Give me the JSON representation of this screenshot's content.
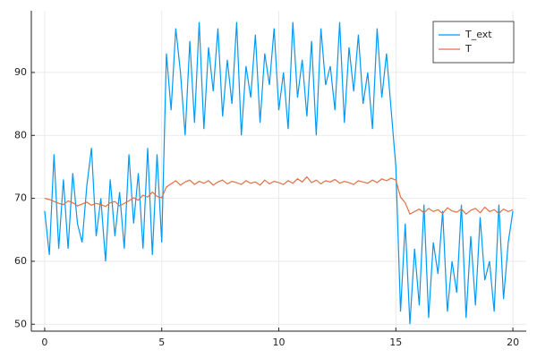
{
  "chart_data": {
    "type": "line",
    "x": [
      0,
      0.2,
      0.4,
      0.6,
      0.8,
      1,
      1.2,
      1.4,
      1.6,
      1.8,
      2,
      2.2,
      2.4,
      2.6,
      2.8,
      3,
      3.2,
      3.4,
      3.6,
      3.8,
      4,
      4.2,
      4.4,
      4.6,
      4.8,
      5,
      5.2,
      5.4,
      5.6,
      5.8,
      6,
      6.2,
      6.4,
      6.6,
      6.8,
      7,
      7.2,
      7.4,
      7.6,
      7.8,
      8,
      8.2,
      8.4,
      8.6,
      8.8,
      9,
      9.2,
      9.4,
      9.6,
      9.8,
      10,
      10.2,
      10.4,
      10.6,
      10.8,
      11,
      11.2,
      11.4,
      11.6,
      11.8,
      12,
      12.2,
      12.4,
      12.6,
      12.8,
      13,
      13.2,
      13.4,
      13.6,
      13.8,
      14,
      14.2,
      14.4,
      14.6,
      14.8,
      15,
      15.2,
      15.4,
      15.6,
      15.8,
      16,
      16.2,
      16.4,
      16.6,
      16.8,
      17,
      17.2,
      17.4,
      17.6,
      17.8,
      18,
      18.2,
      18.4,
      18.6,
      18.8,
      19,
      19.2,
      19.4,
      19.6,
      19.8,
      20
    ],
    "series": [
      {
        "name": "T_ext",
        "color": "#009af9",
        "values": [
          68,
          61,
          77,
          62,
          73,
          62,
          74,
          66,
          63,
          72,
          78,
          64,
          70,
          60,
          73,
          64,
          71,
          62,
          77,
          66,
          74,
          62,
          78,
          61,
          77,
          63,
          93,
          84,
          97,
          90,
          80,
          95,
          82,
          98,
          81,
          94,
          87,
          97,
          83,
          92,
          85,
          98,
          80,
          91,
          86,
          96,
          82,
          93,
          88,
          97,
          84,
          90,
          81,
          98,
          86,
          92,
          83,
          95,
          80,
          97,
          88,
          91,
          84,
          98,
          82,
          94,
          87,
          96,
          85,
          90,
          81,
          97,
          86,
          93,
          84,
          75,
          52,
          66,
          50,
          62,
          53,
          69,
          51,
          63,
          58,
          68,
          52,
          60,
          55,
          69,
          51,
          64,
          53,
          67,
          57,
          60,
          52,
          69,
          54,
          63,
          68
        ]
      },
      {
        "name": "T",
        "color": "#e26f46",
        "values": [
          70,
          69.8,
          69.5,
          69.2,
          69,
          69.6,
          69.3,
          68.8,
          69.1,
          69.4,
          68.9,
          69.2,
          69,
          68.7,
          69.3,
          69.5,
          68.8,
          69.2,
          69.6,
          70.1,
          69.7,
          70.5,
          70.2,
          71,
          70.3,
          70.1,
          71.8,
          72.3,
          72.8,
          72.1,
          72.6,
          72.9,
          72.2,
          72.7,
          72.4,
          72.8,
          72.1,
          72.6,
          72.9,
          72.3,
          72.7,
          72.5,
          72.2,
          72.8,
          72.4,
          72.6,
          72.1,
          72.9,
          72.3,
          72.7,
          72.5,
          72.2,
          72.8,
          72.4,
          73.1,
          72.6,
          73.4,
          72.5,
          72.9,
          72.3,
          72.8,
          72.6,
          73.0,
          72.4,
          72.7,
          72.5,
          72.2,
          72.8,
          72.6,
          72.4,
          72.9,
          72.5,
          73.1,
          72.8,
          73.2,
          72.9,
          70.2,
          69.3,
          67.5,
          67.9,
          68.3,
          67.7,
          68.4,
          67.9,
          68.2,
          67.6,
          68.5,
          68,
          67.8,
          68.3,
          67.5,
          68.1,
          68.4,
          67.7,
          68.6,
          67.9,
          68.2,
          67.6,
          68.3,
          67.9,
          68.2
        ]
      }
    ],
    "xlim": [
      -0.57,
      20.57
    ],
    "xticks": [
      0,
      5,
      10,
      15,
      20
    ],
    "ylim": [
      48.9,
      99.8
    ],
    "yticks": [
      50,
      60,
      70,
      80,
      90
    ],
    "grid": true,
    "legend": "top-right"
  }
}
